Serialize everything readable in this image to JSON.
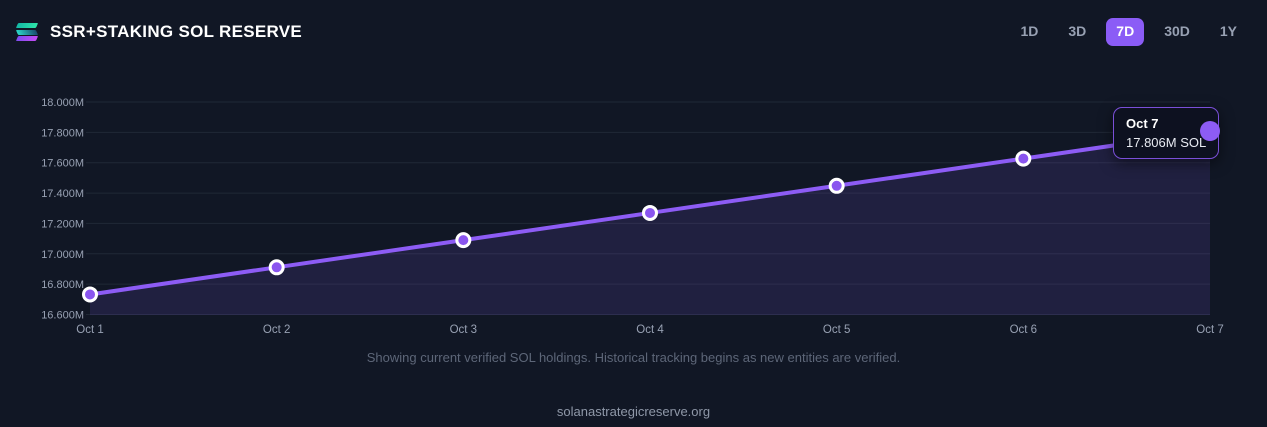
{
  "header": {
    "title": "SSR+STAKING SOL RESERVE",
    "logo_icon": "solana-logo",
    "ranges": [
      {
        "label": "1D",
        "active": false
      },
      {
        "label": "3D",
        "active": false
      },
      {
        "label": "7D",
        "active": true
      },
      {
        "label": "30D",
        "active": false
      },
      {
        "label": "1Y",
        "active": false
      }
    ]
  },
  "chart_data": {
    "type": "line",
    "title": "SSR+STAKING SOL RESERVE",
    "categories": [
      "Oct 1",
      "Oct 2",
      "Oct 3",
      "Oct 4",
      "Oct 5",
      "Oct 6",
      "Oct 7"
    ],
    "series": [
      {
        "name": "SSR+Staking SOL Reserve (millions of SOL)",
        "values": [
          16.732,
          16.911,
          17.09,
          17.269,
          17.448,
          17.627,
          17.806
        ]
      }
    ],
    "unit": "M SOL",
    "xlabel": "",
    "ylabel": "",
    "ylim": [
      16.6,
      18.0
    ],
    "ytick_step": 0.2,
    "ytick_suffix": "M",
    "grid": true,
    "legend_position": "none",
    "line_color": "#8d5cf5",
    "fill_color": "rgba(139,92,246,0.13)",
    "point_fill": "#8a55ef",
    "point_ring": "#ffffff",
    "grid_color": "rgba(152,161,179,0.12)",
    "active_index": 6
  },
  "tooltip": {
    "date": "Oct 7",
    "value": "17.806M SOL"
  },
  "subtitle": "Showing current verified SOL holdings. Historical tracking begins as new entities are verified.",
  "footer": "solanastrategicreserve.org"
}
